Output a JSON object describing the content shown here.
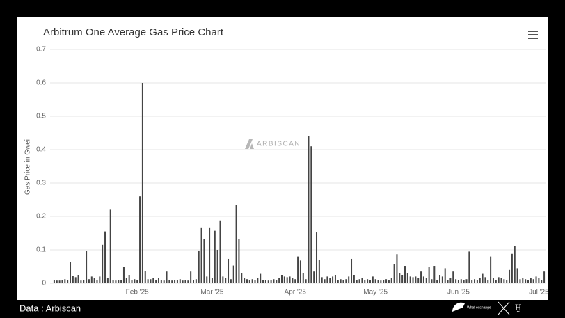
{
  "chart_data": {
    "type": "bar",
    "title": "Arbitrum One Average Gas Price Chart",
    "y_label": "Gas Price in Gwei",
    "watermark": "ARBISCAN",
    "source": "Data : Arbiscan",
    "logo_text": "What exchange",
    "color": "#444444",
    "grid": true,
    "ylim": [
      0,
      0.7
    ],
    "yticks": [
      0,
      0.1,
      0.2,
      0.3,
      0.4,
      0.5,
      0.6,
      0.7
    ],
    "categories": [
      null,
      null,
      null,
      null,
      null,
      null,
      null,
      null,
      null,
      null,
      null,
      null,
      null,
      null,
      null,
      null,
      null,
      null,
      null,
      null,
      null,
      null,
      null,
      null,
      null,
      null,
      null,
      null,
      null,
      null,
      null,
      "Feb '25",
      null,
      null,
      null,
      null,
      null,
      null,
      null,
      null,
      null,
      null,
      null,
      null,
      null,
      null,
      null,
      null,
      null,
      null,
      null,
      null,
      null,
      null,
      null,
      null,
      null,
      null,
      null,
      "Mar '25",
      null,
      null,
      null,
      null,
      null,
      null,
      null,
      null,
      null,
      null,
      null,
      null,
      null,
      null,
      null,
      null,
      null,
      null,
      null,
      null,
      null,
      null,
      null,
      null,
      null,
      null,
      null,
      null,
      null,
      null,
      "Apr '25",
      null,
      null,
      null,
      null,
      null,
      null,
      null,
      null,
      null,
      null,
      null,
      null,
      null,
      null,
      null,
      null,
      null,
      null,
      null,
      null,
      null,
      null,
      null,
      null,
      null,
      null,
      null,
      null,
      null,
      "May '25",
      null,
      null,
      null,
      null,
      null,
      null,
      null,
      null,
      null,
      null,
      null,
      null,
      null,
      null,
      null,
      null,
      null,
      null,
      null,
      null,
      null,
      null,
      null,
      null,
      null,
      null,
      null,
      null,
      null,
      null,
      "Jun '25",
      null,
      null,
      null,
      null,
      null,
      null,
      null,
      null,
      null,
      null,
      null,
      null,
      null,
      null,
      null,
      null,
      null,
      null,
      null,
      null,
      null,
      null,
      null,
      null,
      null,
      null,
      null,
      null,
      null,
      "Jul '25",
      null,
      null
    ],
    "values": [
      0.01,
      0.008,
      0.008,
      0.01,
      0.012,
      0.01,
      0.063,
      0.022,
      0.018,
      0.025,
      0.008,
      0.01,
      0.097,
      0.012,
      0.02,
      0.015,
      0.01,
      0.02,
      0.115,
      0.155,
      0.015,
      0.22,
      0.01,
      0.008,
      0.01,
      0.01,
      0.048,
      0.015,
      0.025,
      0.01,
      0.012,
      0.01,
      0.26,
      0.6,
      0.037,
      0.012,
      0.012,
      0.015,
      0.01,
      0.015,
      0.01,
      0.008,
      0.035,
      0.01,
      0.008,
      0.01,
      0.01,
      0.012,
      0.008,
      0.01,
      0.008,
      0.035,
      0.01,
      0.012,
      0.098,
      0.167,
      0.133,
      0.02,
      0.167,
      0.015,
      0.157,
      0.1,
      0.188,
      0.02,
      0.015,
      0.073,
      0.012,
      0.053,
      0.235,
      0.133,
      0.03,
      0.015,
      0.012,
      0.01,
      0.012,
      0.01,
      0.015,
      0.028,
      0.01,
      0.01,
      0.008,
      0.01,
      0.012,
      0.01,
      0.015,
      0.025,
      0.02,
      0.018,
      0.02,
      0.015,
      0.012,
      0.08,
      0.068,
      0.03,
      0.012,
      0.44,
      0.41,
      0.035,
      0.152,
      0.07,
      0.018,
      0.012,
      0.02,
      0.015,
      0.02,
      0.025,
      0.01,
      0.012,
      0.01,
      0.012,
      0.02,
      0.073,
      0.025,
      0.01,
      0.012,
      0.015,
      0.01,
      0.012,
      0.01,
      0.02,
      0.012,
      0.01,
      0.008,
      0.01,
      0.012,
      0.01,
      0.015,
      0.058,
      0.087,
      0.03,
      0.025,
      0.052,
      0.03,
      0.02,
      0.018,
      0.02,
      0.015,
      0.035,
      0.02,
      0.015,
      0.05,
      0.012,
      0.052,
      0.01,
      0.025,
      0.02,
      0.045,
      0.01,
      0.015,
      0.035,
      0.012,
      0.01,
      0.012,
      0.01,
      0.012,
      0.095,
      0.01,
      0.012,
      0.01,
      0.015,
      0.028,
      0.018,
      0.01,
      0.08,
      0.015,
      0.01,
      0.018,
      0.015,
      0.012,
      0.01,
      0.04,
      0.088,
      0.112,
      0.045,
      0.012,
      0.015,
      0.012,
      0.01,
      0.015,
      0.012,
      0.02,
      0.015,
      0.01,
      0.035
    ]
  }
}
